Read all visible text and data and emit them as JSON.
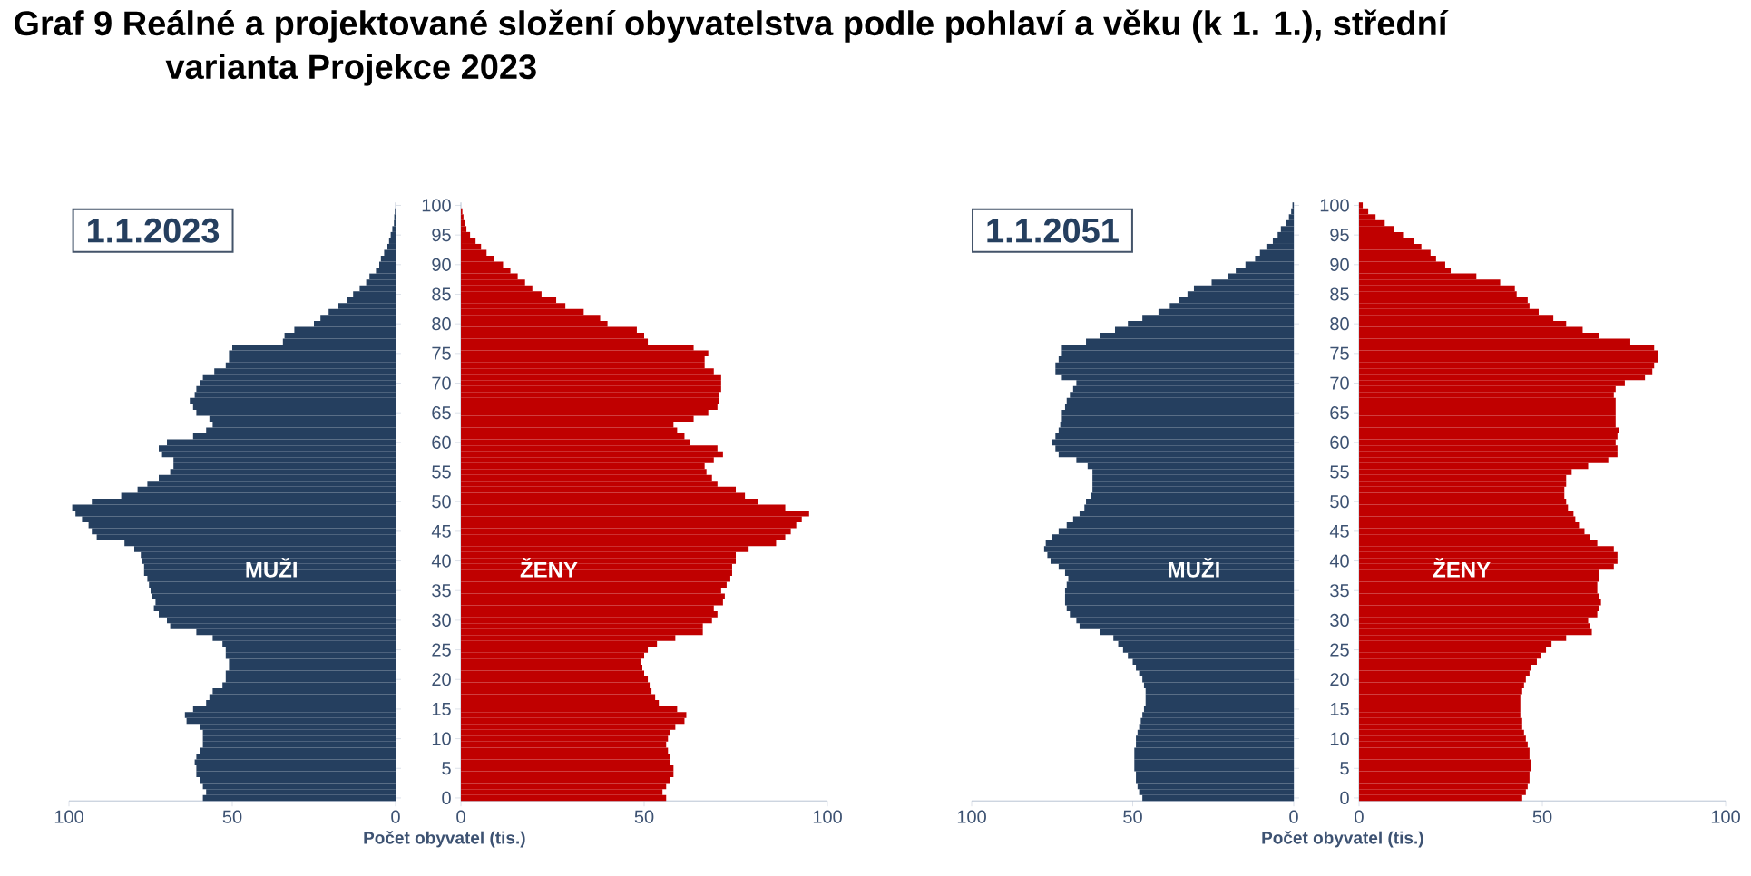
{
  "chart_data": [
    {
      "type": "bar",
      "orientation": "horizontal",
      "title": "Graf 9 Reálné a projektované složení obyvatelstva podle pohlaví a věku (k 1. 1.), střední varianta Projekce 2023",
      "annotations": [
        "1.1.2023"
      ],
      "categories": [
        "100",
        null,
        null,
        null,
        null,
        "95",
        null,
        null,
        null,
        null,
        "90",
        null,
        null,
        null,
        null,
        "85",
        null,
        null,
        null,
        null,
        "80",
        null,
        null,
        null,
        null,
        "75",
        null,
        null,
        null,
        null,
        "70",
        null,
        null,
        null,
        null,
        "65",
        null,
        null,
        null,
        null,
        "60",
        null,
        null,
        null,
        null,
        "55",
        null,
        null,
        null,
        null,
        "50",
        null,
        null,
        null,
        null,
        "45",
        null,
        null,
        null,
        null,
        "40",
        null,
        null,
        null,
        null,
        "35",
        null,
        null,
        null,
        null,
        "30",
        null,
        null,
        null,
        null,
        "25",
        null,
        null,
        null,
        null,
        "20",
        null,
        null,
        null,
        null,
        "15",
        null,
        null,
        null,
        null,
        "10",
        null,
        null,
        null,
        null,
        "5",
        null,
        null,
        null,
        null,
        "0"
      ],
      "xlim": [
        100,
        0
      ],
      "xticks": [
        100,
        50,
        0
      ],
      "tick_labels": "x",
      "series": [
        {
          "name": "MUŽI",
          "color": "#253f5f",
          "values": [
            null,
            0.2,
            0.4,
            0.5,
            1,
            1.5,
            2,
            2.5,
            3.5,
            4.5,
            5,
            6,
            8,
            9,
            11,
            13,
            15,
            17.5,
            20.5,
            23,
            25,
            31,
            34,
            34.5,
            50,
            51,
            51,
            52,
            55.5,
            59,
            60,
            61,
            61.5,
            63,
            62,
            61,
            57,
            56,
            58,
            62,
            70,
            72.5,
            71.5,
            68,
            68,
            69,
            72.5,
            76,
            79,
            84,
            93,
            99,
            98,
            96,
            94,
            93,
            91.5,
            83,
            80,
            78,
            77.5,
            77,
            77,
            76,
            75.5,
            75,
            74.5,
            73.5,
            74,
            72.5,
            70,
            69,
            61,
            56,
            53,
            52,
            52,
            51,
            51,
            52,
            52,
            53,
            56,
            57,
            58,
            62,
            64.5,
            64,
            60,
            59,
            59,
            59,
            60,
            61,
            61.5,
            61,
            61,
            60,
            59,
            58,
            59
          ]
        }
      ]
    },
    {
      "type": "bar",
      "orientation": "horizontal",
      "xlabel": "Počet obyvatel (tis.)",
      "categories": [
        "100",
        null,
        null,
        null,
        null,
        "95",
        null,
        null,
        null,
        null,
        "90",
        null,
        null,
        null,
        null,
        "85",
        null,
        null,
        null,
        null,
        "80",
        null,
        null,
        null,
        null,
        "75",
        null,
        null,
        null,
        null,
        "70",
        null,
        null,
        null,
        null,
        "65",
        null,
        null,
        null,
        null,
        "60",
        null,
        null,
        null,
        null,
        "55",
        null,
        null,
        null,
        null,
        "50",
        null,
        null,
        null,
        null,
        "45",
        null,
        null,
        null,
        null,
        "40",
        null,
        null,
        null,
        null,
        "35",
        null,
        null,
        null,
        null,
        "30",
        null,
        null,
        null,
        null,
        "25",
        null,
        null,
        null,
        null,
        "20",
        null,
        null,
        null,
        null,
        "15",
        null,
        null,
        null,
        null,
        "10",
        null,
        null,
        null,
        null,
        "5",
        null,
        null,
        null,
        null,
        "0"
      ],
      "xlim": [
        0,
        100
      ],
      "xticks": [
        0,
        50,
        100
      ],
      "series": [
        {
          "name": "ŽENY",
          "color": "#c00000",
          "values": [
            null,
            0.4,
            0.7,
            1,
            1.5,
            2.5,
            4,
            5.5,
            7,
            9,
            11.5,
            13.5,
            15.5,
            17.5,
            19.5,
            22,
            26,
            28.5,
            33.5,
            38,
            40,
            48,
            50,
            51,
            63.5,
            67.5,
            66.5,
            66.5,
            69,
            71,
            71,
            71,
            70.5,
            70.5,
            70,
            67.5,
            63.5,
            58,
            59,
            61,
            62.5,
            70,
            71.5,
            69,
            66.5,
            67,
            68.5,
            70,
            75,
            77.5,
            81,
            88.5,
            95,
            93,
            91.5,
            90,
            88.5,
            86,
            78.5,
            75,
            75,
            74,
            74,
            73.5,
            72.5,
            71,
            72,
            71.5,
            69,
            70,
            68.5,
            66,
            66,
            58.5,
            53.5,
            51,
            50,
            49,
            49.5,
            50,
            51,
            51.5,
            52,
            53,
            54,
            59,
            61.5,
            61,
            58.5,
            57,
            56.5,
            56,
            56.5,
            57,
            57,
            58,
            58,
            57,
            56,
            55,
            56
          ]
        }
      ]
    },
    {
      "type": "bar",
      "orientation": "horizontal",
      "annotations": [
        "1.1.2051"
      ],
      "categories": [
        "100",
        null,
        null,
        null,
        null,
        "95",
        null,
        null,
        null,
        null,
        "90",
        null,
        null,
        null,
        null,
        "85",
        null,
        null,
        null,
        null,
        "80",
        null,
        null,
        null,
        null,
        "75",
        null,
        null,
        null,
        null,
        "70",
        null,
        null,
        null,
        null,
        "65",
        null,
        null,
        null,
        null,
        "60",
        null,
        null,
        null,
        null,
        "55",
        null,
        null,
        null,
        null,
        "50",
        null,
        null,
        null,
        null,
        "45",
        null,
        null,
        null,
        null,
        "40",
        null,
        null,
        null,
        null,
        "35",
        null,
        null,
        null,
        null,
        "30",
        null,
        null,
        null,
        null,
        "25",
        null,
        null,
        null,
        null,
        "20",
        null,
        null,
        null,
        null,
        "15",
        null,
        null,
        null,
        null,
        "10",
        null,
        null,
        null,
        null,
        "5",
        null,
        null,
        null,
        null,
        "0"
      ],
      "xlim": [
        100,
        0
      ],
      "xticks": [
        100,
        50,
        0
      ],
      "tick_labels": "x",
      "series": [
        {
          "name": "MUŽI",
          "color": "#253f5f",
          "values": [
            0.4,
            0.8,
            1.5,
            2.5,
            4,
            5,
            6.5,
            8.5,
            10.5,
            12,
            15,
            18,
            20.5,
            25.5,
            31,
            33,
            35.5,
            38.5,
            42,
            47,
            51.5,
            55.5,
            60,
            64.5,
            72,
            72,
            73,
            74,
            74,
            72,
            67.5,
            68.5,
            69.5,
            70.5,
            71,
            72,
            72,
            72.5,
            73,
            74,
            75,
            74,
            73,
            67.5,
            64,
            62.5,
            62.5,
            62.5,
            62.5,
            63,
            64.5,
            65,
            66.5,
            68.5,
            70.5,
            73,
            75,
            77,
            77.5,
            76.5,
            75.5,
            73,
            71,
            70,
            70.5,
            71,
            71,
            71,
            70.5,
            69.5,
            67.5,
            66.5,
            60,
            56,
            54.5,
            53,
            51.5,
            50,
            49,
            48,
            47,
            46.5,
            46,
            46,
            46,
            46.5,
            47,
            47.5,
            48,
            48.5,
            49,
            49,
            49.5,
            49.5,
            49.5,
            49.5,
            49,
            49,
            48.5,
            48,
            47
          ]
        }
      ]
    },
    {
      "type": "bar",
      "orientation": "horizontal",
      "xlabel": "Počet obyvatel (tis.)",
      "categories": [
        "100",
        null,
        null,
        null,
        null,
        "95",
        null,
        null,
        null,
        null,
        "90",
        null,
        null,
        null,
        null,
        "85",
        null,
        null,
        null,
        null,
        "80",
        null,
        null,
        null,
        null,
        "75",
        null,
        null,
        null,
        null,
        "70",
        null,
        null,
        null,
        null,
        "65",
        null,
        null,
        null,
        null,
        "60",
        null,
        null,
        null,
        null,
        "55",
        null,
        null,
        null,
        null,
        "50",
        null,
        null,
        null,
        null,
        "45",
        null,
        null,
        null,
        null,
        "40",
        null,
        null,
        null,
        null,
        "35",
        null,
        null,
        null,
        null,
        "30",
        null,
        null,
        null,
        null,
        "25",
        null,
        null,
        null,
        null,
        "20",
        null,
        null,
        null,
        null,
        "15",
        null,
        null,
        null,
        null,
        "10",
        null,
        null,
        null,
        null,
        "5",
        null,
        null,
        null,
        null,
        "0"
      ],
      "xlim": [
        0,
        100
      ],
      "xticks": [
        0,
        50,
        100
      ],
      "series": [
        {
          "name": "ŽENY",
          "color": "#c00000",
          "values": [
            1,
            2.5,
            4.5,
            7,
            9.5,
            12,
            15,
            17,
            19.5,
            21,
            23.5,
            25,
            32,
            38.5,
            42.5,
            43,
            46,
            46.5,
            49,
            53,
            56.5,
            61,
            65.5,
            74,
            80.5,
            81.5,
            81.5,
            80.5,
            80,
            78,
            72.5,
            70,
            69.5,
            70,
            70,
            70,
            70,
            70,
            71,
            70.5,
            70,
            70.5,
            70.5,
            68,
            62.5,
            58,
            56.5,
            56.5,
            56,
            56,
            56.5,
            57,
            58.5,
            59,
            60,
            61.5,
            63,
            65,
            69.5,
            70.5,
            70.5,
            69.5,
            65.5,
            65.5,
            65,
            65,
            65.5,
            66,
            65.5,
            65,
            62.5,
            63,
            63.5,
            56.5,
            52.5,
            51,
            49.5,
            48.5,
            47,
            46.5,
            45.5,
            45,
            44.5,
            44,
            44,
            44,
            44,
            44.5,
            44.5,
            45,
            45.5,
            46,
            46.5,
            46.5,
            47,
            47,
            46.5,
            46.5,
            46,
            45.5,
            44.5
          ]
        }
      ]
    }
  ]
}
